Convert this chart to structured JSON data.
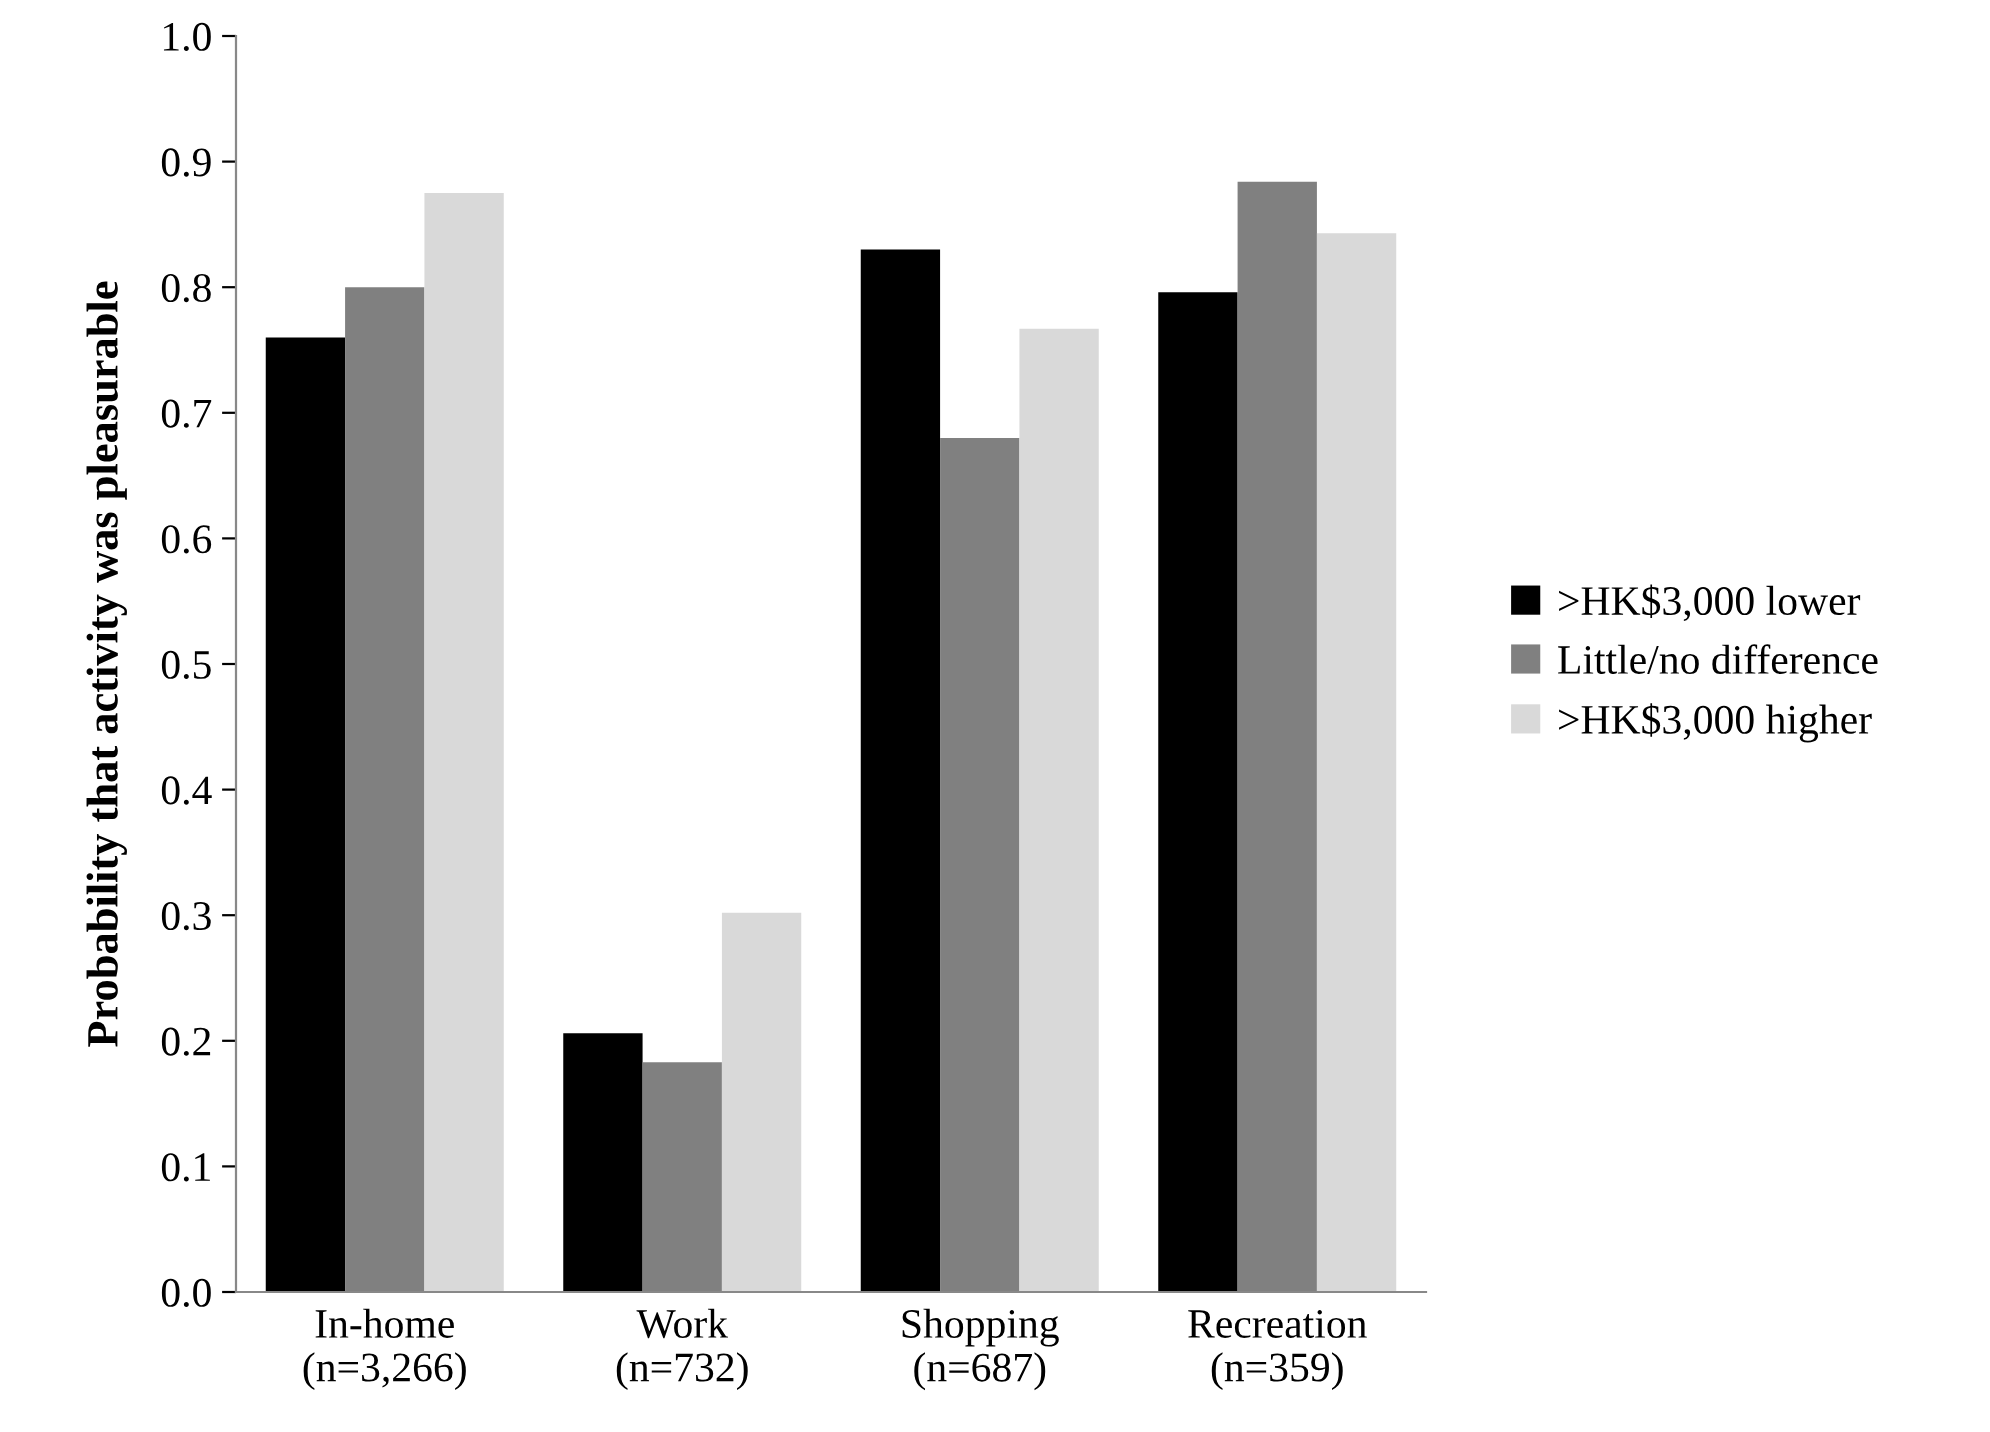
{
  "chart_data": {
    "type": "bar",
    "ylabel": "Probability that activity was pleasurable",
    "categories": [
      "In-home\n(n=3,266)",
      "Work\n(n=732)",
      "Shopping\n(n=687)",
      "Recreation\n(n=359)"
    ],
    "series": [
      {
        "name": ">HK$3,000 lower",
        "color": "#000000",
        "values": [
          0.76,
          0.206,
          0.83,
          0.796
        ]
      },
      {
        "name": "Little/no difference",
        "color": "#808080",
        "values": [
          0.8,
          0.183,
          0.68,
          0.884
        ]
      },
      {
        "name": ">HK$3,000 higher",
        "color": "#d9d9d9",
        "values": [
          0.875,
          0.302,
          0.767,
          0.843
        ]
      }
    ],
    "ylim": [
      0,
      1.0
    ],
    "yticks": [
      {
        "value": 0,
        "label": "0.0"
      },
      {
        "value": 0.1,
        "label": "0.1"
      },
      {
        "value": 0.2,
        "label": "0.2"
      },
      {
        "value": 0.3,
        "label": "0.3"
      },
      {
        "value": 0.4,
        "label": "0.4"
      },
      {
        "value": 0.5,
        "label": "0.5"
      },
      {
        "value": 0.6,
        "label": "0.6"
      },
      {
        "value": 0.7,
        "label": "0.7"
      },
      {
        "value": 0.8,
        "label": "0.8"
      },
      {
        "value": 0.9,
        "label": "0.9"
      },
      {
        "value": 1.0,
        "label": "1.0"
      }
    ],
    "grid": false,
    "legend": "right"
  }
}
